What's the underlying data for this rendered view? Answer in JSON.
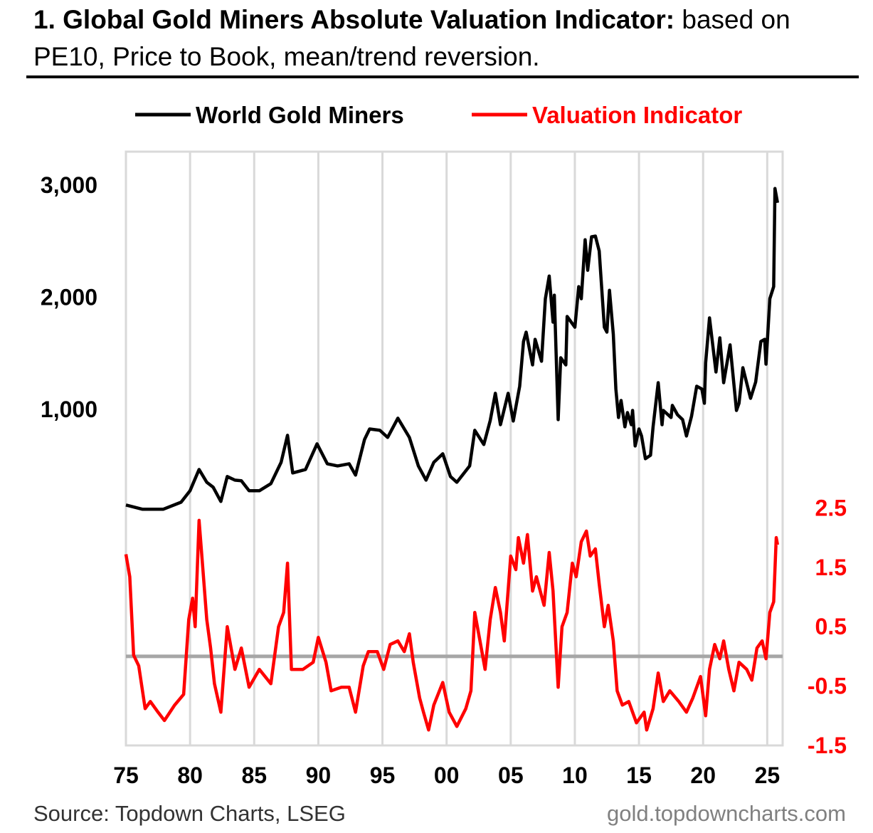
{
  "title": {
    "bold": "1. Global Gold Miners Absolute Valuation Indicator:",
    "rest": " based on PE10, Price to Book, mean/trend reversion."
  },
  "footer": {
    "source": "Source: Topdown Charts, LSEG",
    "site": "gold.topdowncharts.com"
  },
  "chart_data": {
    "type": "line",
    "legend_placement": "top",
    "grid": "vertical",
    "xlim": [
      1975,
      2026.2
    ],
    "x_ticks": [
      1975,
      1980,
      1985,
      1990,
      1995,
      2000,
      2005,
      2010,
      2015,
      2020,
      2025
    ],
    "x_tick_labels": [
      "75",
      "80",
      "85",
      "90",
      "95",
      "00",
      "05",
      "10",
      "15",
      "20",
      "25"
    ],
    "left_axis": {
      "ylim": [
        -2000,
        3300
      ],
      "ticks": [
        1000,
        2000,
        3000
      ],
      "tick_labels": [
        "1,000",
        "2,000",
        "3,000"
      ]
    },
    "right_axis": {
      "ylim": [
        -1.5,
        8.5
      ],
      "ticks": [
        -1.5,
        -0.5,
        0.5,
        1.5,
        2.5
      ],
      "tick_labels": [
        "-1.5",
        "-0.5",
        "0.5",
        "1.5",
        "2.5"
      ],
      "color": "#ff0000",
      "reference_line": 0
    },
    "series": [
      {
        "name": "World Gold Miners",
        "axis": "left",
        "color": "#000000",
        "x": [
          1975.0,
          1976.3,
          1977.9,
          1979.3,
          1980.0,
          1980.7,
          1981.3,
          1981.8,
          1982.4,
          1982.9,
          1983.5,
          1984.0,
          1984.6,
          1985.4,
          1986.3,
          1987.1,
          1987.6,
          1988.0,
          1989.0,
          1989.9,
          1990.7,
          1991.5,
          1992.4,
          1992.9,
          1993.6,
          1994.0,
          1994.8,
          1995.4,
          1996.2,
          1997.1,
          1997.8,
          1998.4,
          1999.0,
          1999.7,
          2000.3,
          2000.8,
          2001.8,
          2002.2,
          2002.9,
          2003.4,
          2003.8,
          2004.2,
          2004.8,
          2005.2,
          2005.7,
          2006.0,
          2006.2,
          2006.7,
          2006.9,
          2007.4,
          2007.7,
          2008.0,
          2008.3,
          2008.4,
          2008.7,
          2008.9,
          2009.3,
          2009.4,
          2010.0,
          2010.3,
          2010.5,
          2010.8,
          2011.0,
          2011.3,
          2011.6,
          2011.9,
          2012.0,
          2012.3,
          2012.5,
          2012.7,
          2013.0,
          2013.2,
          2013.4,
          2013.6,
          2013.9,
          2014.1,
          2014.4,
          2014.5,
          2014.7,
          2015.0,
          2015.2,
          2015.5,
          2015.9,
          2016.1,
          2016.5,
          2016.8,
          2016.9,
          2017.5,
          2017.6,
          2018.0,
          2018.4,
          2018.7,
          2019.1,
          2019.5,
          2019.9,
          2020.1,
          2020.2,
          2020.5,
          2020.7,
          2021.0,
          2021.3,
          2021.6,
          2022.1,
          2022.6,
          2022.8,
          2023.1,
          2023.7,
          2024.1,
          2024.5,
          2024.8,
          2024.9,
          2025.2,
          2025.5,
          2025.6,
          2025.8
        ],
        "values": [
          146,
          108,
          108,
          171,
          273,
          463,
          349,
          305,
          178,
          400,
          368,
          362,
          273,
          273,
          337,
          527,
          768,
          432,
          463,
          692,
          514,
          495,
          514,
          413,
          730,
          825,
          813,
          749,
          921,
          749,
          495,
          368,
          527,
          603,
          400,
          349,
          495,
          813,
          686,
          900,
          1143,
          863,
          1143,
          895,
          1206,
          1606,
          1689,
          1397,
          1625,
          1429,
          1987,
          2190,
          1778,
          2019,
          908,
          1460,
          1397,
          1829,
          1733,
          2095,
          1987,
          2514,
          2241,
          2540,
          2546,
          2413,
          2241,
          1733,
          1689,
          2063,
          1670,
          1181,
          927,
          1079,
          844,
          971,
          863,
          990,
          673,
          825,
          762,
          559,
          590,
          844,
          1238,
          863,
          990,
          927,
          1035,
          952,
          908,
          762,
          940,
          1206,
          1181,
          1054,
          1416,
          1816,
          1625,
          1333,
          1638,
          1238,
          1575,
          990,
          1054,
          1371,
          1098,
          1244,
          1606,
          1625,
          1403,
          1987,
          2095,
          2971,
          2844
        ]
      },
      {
        "name": "Valuation Indicator",
        "axis": "right",
        "color": "#ff0000",
        "x": [
          1975.0,
          1975.3,
          1975.6,
          1976.0,
          1976.5,
          1976.9,
          1977.5,
          1978.0,
          1978.8,
          1979.5,
          1979.9,
          1980.2,
          1980.4,
          1980.7,
          1981.0,
          1981.3,
          1981.6,
          1981.9,
          1982.4,
          1982.9,
          1983.5,
          1984.0,
          1984.6,
          1985.4,
          1986.3,
          1986.9,
          1987.3,
          1987.6,
          1987.9,
          1988.8,
          1989.6,
          1990.0,
          1990.6,
          1991.0,
          1991.8,
          1992.4,
          1992.9,
          1993.5,
          1993.9,
          1994.6,
          1995.1,
          1995.6,
          1996.2,
          1996.7,
          1997.1,
          1997.4,
          1997.9,
          1998.2,
          1998.6,
          1999.0,
          1999.7,
          2000.2,
          2000.8,
          2001.5,
          2001.9,
          2002.2,
          2002.6,
          2003.0,
          2003.4,
          2003.8,
          2004.2,
          2004.5,
          2005.0,
          2005.4,
          2005.6,
          2006.0,
          2006.3,
          2006.7,
          2007.0,
          2007.6,
          2008.0,
          2008.3,
          2008.7,
          2009.0,
          2009.4,
          2009.8,
          2010.1,
          2010.5,
          2010.9,
          2011.2,
          2011.6,
          2011.9,
          2012.3,
          2012.6,
          2013.0,
          2013.3,
          2013.7,
          2014.2,
          2014.8,
          2015.4,
          2015.6,
          2016.1,
          2016.5,
          2016.9,
          2017.4,
          2018.1,
          2018.7,
          2019.2,
          2019.8,
          2020.2,
          2020.5,
          2020.9,
          2021.3,
          2021.6,
          2022.0,
          2022.4,
          2022.8,
          2023.4,
          2023.8,
          2024.2,
          2024.6,
          2024.9,
          2025.2,
          2025.5,
          2025.7,
          2025.8
        ],
        "values": [
          1.72,
          1.34,
          0.02,
          -0.16,
          -0.88,
          -0.76,
          -0.94,
          -1.08,
          -0.82,
          -0.64,
          0.62,
          0.98,
          0.5,
          2.29,
          1.46,
          0.62,
          0.14,
          -0.46,
          -0.94,
          0.5,
          -0.22,
          0.14,
          -0.52,
          -0.22,
          -0.46,
          0.5,
          0.74,
          1.57,
          -0.22,
          -0.22,
          -0.1,
          0.32,
          -0.1,
          -0.58,
          -0.52,
          -0.52,
          -0.94,
          -0.16,
          0.08,
          0.08,
          -0.22,
          0.2,
          0.26,
          0.08,
          0.38,
          -0.1,
          -0.7,
          -0.94,
          -1.24,
          -0.82,
          -0.44,
          -0.94,
          -1.18,
          -0.88,
          -0.58,
          0.74,
          0.26,
          -0.22,
          0.62,
          1.16,
          0.74,
          0.26,
          1.69,
          1.46,
          2.0,
          1.57,
          2.05,
          1.1,
          1.34,
          0.86,
          1.75,
          1.1,
          -0.52,
          0.5,
          0.74,
          1.57,
          1.34,
          1.93,
          2.11,
          1.69,
          1.81,
          1.22,
          0.5,
          0.86,
          0.26,
          -0.58,
          -0.82,
          -0.76,
          -1.12,
          -0.94,
          -1.24,
          -0.88,
          -0.28,
          -0.76,
          -0.58,
          -0.76,
          -0.94,
          -0.7,
          -0.34,
          -1.0,
          -0.22,
          0.2,
          -0.04,
          0.26,
          -0.22,
          -0.58,
          -0.1,
          -0.22,
          -0.4,
          0.14,
          0.26,
          -0.04,
          0.74,
          0.92,
          2.0,
          1.88
        ]
      }
    ]
  }
}
